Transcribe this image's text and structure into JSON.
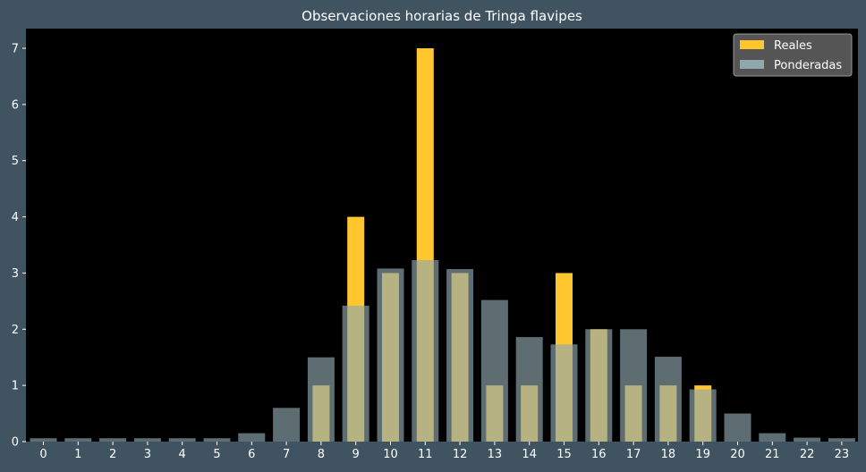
{
  "chart_data": {
    "type": "bar",
    "title": "Observaciones horarias de Tringa flavipes",
    "xlabel": "",
    "ylabel": "",
    "categories": [
      "0",
      "1",
      "2",
      "3",
      "4",
      "5",
      "6",
      "7",
      "8",
      "9",
      "10",
      "11",
      "12",
      "13",
      "14",
      "15",
      "16",
      "17",
      "18",
      "19",
      "20",
      "21",
      "22",
      "23"
    ],
    "series": [
      {
        "name": "Reales",
        "color": "#ffc62e",
        "values": [
          0,
          0,
          0,
          0,
          0,
          0,
          0,
          0,
          1,
          4,
          3,
          7,
          3,
          1,
          1,
          3,
          2,
          1,
          1,
          1,
          0,
          0,
          0,
          0
        ]
      },
      {
        "name": "Ponderadas",
        "color": "#8fa8ad",
        "values": [
          0.06,
          0.06,
          0.06,
          0.06,
          0.06,
          0.06,
          0.15,
          0.6,
          1.5,
          2.42,
          3.08,
          3.23,
          3.07,
          2.52,
          1.86,
          1.73,
          2.0,
          2.0,
          1.51,
          0.93,
          0.5,
          0.15,
          0.07,
          0.06
        ]
      }
    ],
    "ylim": [
      0,
      7.35
    ],
    "yticks": [
      0,
      1,
      2,
      3,
      4,
      5,
      6,
      7
    ],
    "grid": false,
    "legend_position": "top-right",
    "colors": {
      "figure_bg": "#3f5360",
      "plot_bg": "#000000",
      "text": "#ffffff"
    }
  }
}
